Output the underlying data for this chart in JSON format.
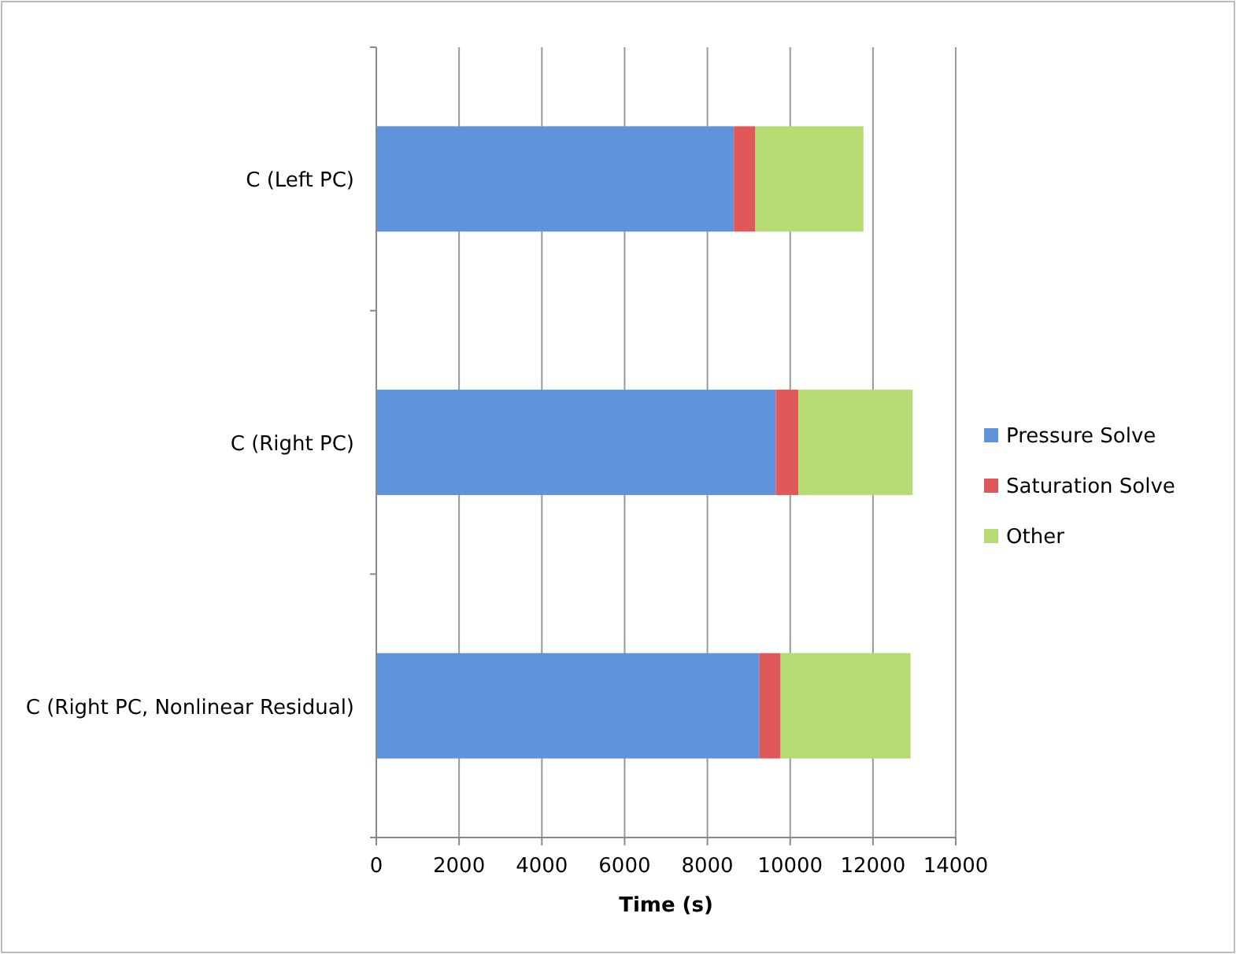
{
  "chart_data": {
    "type": "bar",
    "orientation": "horizontal",
    "stacked": true,
    "xlabel": "Time (s)",
    "categories": [
      "C (Left PC)",
      "C (Right PC)",
      "C (Right PC, Nonlinear Residual)"
    ],
    "series": [
      {
        "name": "Pressure Solve",
        "color": "#5f93dc",
        "values": [
          8640,
          9650,
          9260
        ]
      },
      {
        "name": "Saturation Solve",
        "color": "#e0585a",
        "values": [
          520,
          550,
          510
        ]
      },
      {
        "name": "Other",
        "color": "#b6db72",
        "values": [
          2610,
          2760,
          3140
        ]
      }
    ],
    "xlim": [
      0,
      14000
    ],
    "xticks": [
      0,
      2000,
      4000,
      6000,
      8000,
      10000,
      12000,
      14000
    ],
    "grid": "x",
    "legend": "right"
  }
}
